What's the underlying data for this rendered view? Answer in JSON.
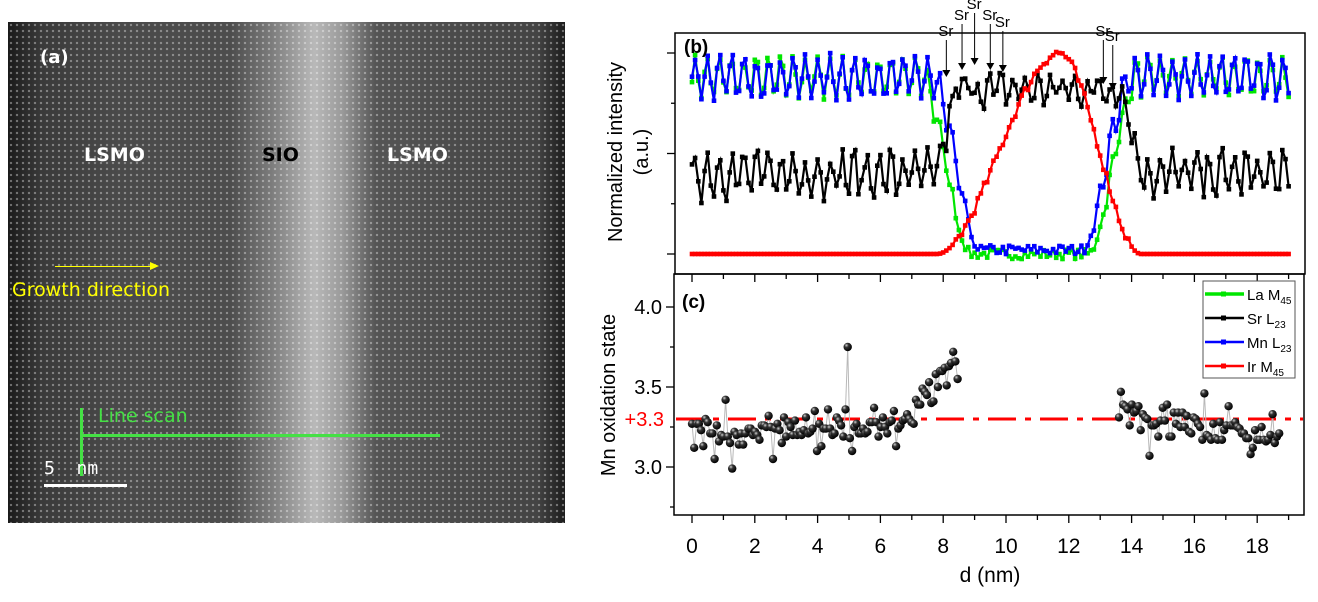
{
  "panel_a": {
    "label": "(a)",
    "regions": [
      "LSMO",
      "SIO",
      "LSMO"
    ],
    "growth_label": "Growth direction",
    "line_scan_label": "Line scan",
    "scale_bar_label": "5  nm",
    "colors": {
      "growth": "#ffff00",
      "line_scan": "#44e044",
      "sio_label": "#000000",
      "lsmo_label": "#ffffff"
    }
  },
  "chart_data": [
    {
      "id": "b",
      "type": "line",
      "panel_label": "(b)",
      "title": "",
      "xlabel": "",
      "ylabel": "Normalized intensity",
      "ylabel2": "(a.u.)",
      "xlim": [
        -0.57,
        19.46
      ],
      "ylim": [
        -0.2,
        1.2
      ],
      "yticks_major": [
        0,
        0.5,
        1.0
      ],
      "yticks_minor": [
        0.25,
        0.75
      ],
      "ytick_labels_shown": false,
      "xticks": [
        0,
        1,
        2,
        3,
        4,
        5,
        6,
        7,
        8,
        9,
        10,
        11,
        12,
        13,
        14,
        15,
        16,
        17,
        18,
        19
      ],
      "grid": false,
      "x_start": 0,
      "x_step": 0.1,
      "series": [
        {
          "name": "La M45",
          "color": "#00e600",
          "model": {
            "plateau": 0.88,
            "amp": 0.09,
            "period": 0.39,
            "dip_start": 7.3,
            "dip_end": 14.2,
            "floor": 0.0
          }
        },
        {
          "name": "Sr L23",
          "color": "#000000",
          "model": {
            "plateau": 0.4,
            "amp": 0.1,
            "period": 0.39,
            "mid": 0.82,
            "mid_start": 8.1,
            "mid_end": 14.0
          }
        },
        {
          "name": "Mn L23",
          "color": "#0000ff",
          "model": {
            "plateau": 0.88,
            "amp": 0.1,
            "period": 0.39,
            "dip_start": 7.6,
            "dip_end": 14.0,
            "floor": 0.02
          }
        },
        {
          "name": "Ir M45",
          "color": "#ff0000",
          "model": {
            "base": 0.0,
            "peak": 1.0,
            "rise_start": 7.8,
            "rise_end": 11.7,
            "fall_end": 14.3
          }
        }
      ],
      "annotations": [
        {
          "text": "Sr",
          "x": 8.1
        },
        {
          "text": "Sr",
          "x": 8.6
        },
        {
          "text": "Sr",
          "x": 9.0
        },
        {
          "text": "Sr",
          "x": 9.5
        },
        {
          "text": "Sr",
          "x": 9.9
        },
        {
          "text": "Sr",
          "x": 13.1
        },
        {
          "text": "Sr",
          "x": 13.4
        }
      ]
    },
    {
      "id": "c",
      "type": "scatter",
      "panel_label": "(c)",
      "title": "",
      "xlabel": "d (nm)",
      "ylabel": "Mn oxidation state",
      "xlim": [
        -0.57,
        19.46
      ],
      "ylim": [
        2.7,
        4.2
      ],
      "yticks": [
        3.0,
        3.5,
        4.0
      ],
      "ytick_labels": [
        "3.0",
        "3.5",
        "4.0"
      ],
      "yticks_minor": [
        2.75,
        3.25,
        3.75
      ],
      "xticks": [
        0,
        2,
        4,
        6,
        8,
        10,
        12,
        14,
        16,
        18
      ],
      "xtick_labels": [
        "0",
        "2",
        "4",
        "6",
        "8",
        "10",
        "12",
        "14",
        "16",
        "18"
      ],
      "xticks_minor": [
        1,
        3,
        5,
        7,
        9,
        11,
        13,
        15,
        17,
        19
      ],
      "grid": false,
      "reference_line": {
        "y": 3.3,
        "label": "+3.3",
        "color": "#ff0000",
        "style": "dash-dot"
      },
      "points": [
        [
          0.0,
          3.27
        ],
        [
          0.07,
          3.12
        ],
        [
          0.15,
          3.27
        ],
        [
          0.22,
          3.27
        ],
        [
          0.29,
          3.23
        ],
        [
          0.36,
          3.13
        ],
        [
          0.43,
          3.3
        ],
        [
          0.5,
          3.28
        ],
        [
          0.58,
          3.21
        ],
        [
          0.65,
          3.21
        ],
        [
          0.72,
          3.05
        ],
        [
          0.79,
          3.26
        ],
        [
          0.86,
          3.16
        ],
        [
          0.93,
          3.2
        ],
        [
          1.0,
          3.19
        ],
        [
          1.07,
          3.42
        ],
        [
          1.14,
          3.19
        ],
        [
          1.21,
          3.15
        ],
        [
          1.28,
          2.99
        ],
        [
          1.35,
          3.22
        ],
        [
          1.42,
          3.2
        ],
        [
          1.49,
          3.14
        ],
        [
          1.56,
          3.21
        ],
        [
          1.63,
          3.14
        ],
        [
          1.7,
          3.21
        ],
        [
          1.8,
          3.24
        ],
        [
          1.87,
          3.24
        ],
        [
          1.94,
          3.2
        ],
        [
          2.01,
          3.22
        ],
        [
          2.08,
          3.2
        ],
        [
          2.15,
          3.17
        ],
        [
          2.22,
          3.26
        ],
        [
          2.3,
          3.26
        ],
        [
          2.37,
          3.25
        ],
        [
          2.44,
          3.32
        ],
        [
          2.51,
          3.25
        ],
        [
          2.58,
          3.05
        ],
        [
          2.65,
          3.24
        ],
        [
          2.72,
          3.27
        ],
        [
          2.79,
          3.23
        ],
        [
          2.86,
          3.15
        ],
        [
          2.93,
          3.31
        ],
        [
          3.0,
          3.19
        ],
        [
          3.07,
          3.28
        ],
        [
          3.14,
          3.25
        ],
        [
          3.21,
          3.2
        ],
        [
          3.28,
          3.29
        ],
        [
          3.35,
          3.2
        ],
        [
          3.42,
          3.22
        ],
        [
          3.49,
          3.2
        ],
        [
          3.56,
          3.23
        ],
        [
          3.63,
          3.31
        ],
        [
          3.7,
          3.21
        ],
        [
          3.77,
          3.22
        ],
        [
          3.84,
          3.24
        ],
        [
          3.91,
          3.35
        ],
        [
          3.98,
          3.1
        ],
        [
          4.05,
          3.27
        ],
        [
          4.12,
          3.13
        ],
        [
          4.19,
          3.24
        ],
        [
          4.26,
          3.24
        ],
        [
          4.33,
          3.36
        ],
        [
          4.4,
          3.24
        ],
        [
          4.47,
          3.2
        ],
        [
          4.54,
          3.21
        ],
        [
          4.61,
          3.31
        ],
        [
          4.68,
          3.29
        ],
        [
          4.75,
          3.26
        ],
        [
          4.82,
          3.19
        ],
        [
          4.89,
          3.36
        ],
        [
          4.96,
          3.75
        ],
        [
          5.03,
          3.18
        ],
        [
          5.1,
          3.1
        ],
        [
          5.17,
          3.25
        ],
        [
          5.24,
          3.27
        ],
        [
          5.31,
          3.21
        ],
        [
          5.38,
          3.21
        ],
        [
          5.45,
          3.24
        ],
        [
          5.52,
          3.21
        ],
        [
          5.59,
          3.22
        ],
        [
          5.66,
          3.28
        ],
        [
          5.73,
          3.28
        ],
        [
          5.8,
          3.37
        ],
        [
          5.87,
          3.28
        ],
        [
          5.94,
          3.19
        ],
        [
          6.01,
          3.25
        ],
        [
          6.08,
          3.31
        ],
        [
          6.15,
          3.25
        ],
        [
          6.22,
          3.21
        ],
        [
          6.29,
          3.28
        ],
        [
          6.36,
          3.29
        ],
        [
          6.43,
          3.35
        ],
        [
          6.5,
          3.13
        ],
        [
          6.57,
          3.24
        ],
        [
          6.64,
          3.26
        ],
        [
          6.71,
          3.29
        ],
        [
          6.78,
          3.3
        ],
        [
          6.85,
          3.33
        ],
        [
          6.92,
          3.3
        ],
        [
          6.99,
          3.28
        ],
        [
          7.06,
          3.27
        ],
        [
          7.13,
          3.42
        ],
        [
          7.2,
          3.39
        ],
        [
          7.27,
          3.39
        ],
        [
          7.34,
          3.49
        ],
        [
          7.41,
          3.47
        ],
        [
          7.48,
          3.45
        ],
        [
          7.55,
          3.53
        ],
        [
          7.62,
          3.4
        ],
        [
          7.69,
          3.41
        ],
        [
          7.76,
          3.58
        ],
        [
          7.83,
          3.5
        ],
        [
          7.9,
          3.6
        ],
        [
          7.97,
          3.6
        ],
        [
          8.04,
          3.62
        ],
        [
          8.11,
          3.51
        ],
        [
          8.18,
          3.63
        ],
        [
          8.25,
          3.65
        ],
        [
          8.32,
          3.72
        ],
        [
          8.39,
          3.66
        ],
        [
          8.46,
          3.55
        ],
        [
          13.6,
          3.31
        ],
        [
          13.66,
          3.47
        ],
        [
          13.73,
          3.39
        ],
        [
          13.8,
          3.38
        ],
        [
          13.87,
          3.36
        ],
        [
          13.94,
          3.26
        ],
        [
          14.01,
          3.39
        ],
        [
          14.08,
          3.34
        ],
        [
          14.15,
          3.35
        ],
        [
          14.22,
          3.38
        ],
        [
          14.29,
          3.23
        ],
        [
          14.36,
          3.33
        ],
        [
          14.43,
          3.31
        ],
        [
          14.5,
          3.3
        ],
        [
          14.57,
          3.07
        ],
        [
          14.64,
          3.26
        ],
        [
          14.71,
          3.26
        ],
        [
          14.78,
          3.27
        ],
        [
          14.85,
          3.19
        ],
        [
          14.92,
          3.29
        ],
        [
          14.99,
          3.37
        ],
        [
          15.06,
          3.29
        ],
        [
          15.13,
          3.39
        ],
        [
          15.2,
          3.19
        ],
        [
          15.27,
          3.19
        ],
        [
          15.34,
          3.34
        ],
        [
          15.41,
          3.27
        ],
        [
          15.48,
          3.34
        ],
        [
          15.55,
          3.25
        ],
        [
          15.62,
          3.34
        ],
        [
          15.69,
          3.25
        ],
        [
          15.76,
          3.32
        ],
        [
          15.83,
          3.22
        ],
        [
          15.9,
          3.21
        ],
        [
          15.97,
          3.31
        ],
        [
          16.04,
          3.3
        ],
        [
          16.11,
          3.27
        ],
        [
          16.18,
          3.25
        ],
        [
          16.25,
          3.17
        ],
        [
          16.32,
          3.46
        ],
        [
          16.39,
          3.2
        ],
        [
          16.46,
          3.19
        ],
        [
          16.53,
          3.17
        ],
        [
          16.6,
          3.27
        ],
        [
          16.67,
          3.18
        ],
        [
          16.74,
          3.17
        ],
        [
          16.81,
          3.28
        ],
        [
          16.88,
          3.17
        ],
        [
          16.95,
          3.23
        ],
        [
          17.02,
          3.26
        ],
        [
          17.09,
          3.38
        ],
        [
          17.16,
          3.26
        ],
        [
          17.23,
          3.26
        ],
        [
          17.3,
          3.28
        ],
        [
          17.37,
          3.25
        ],
        [
          17.44,
          3.24
        ],
        [
          17.51,
          3.21
        ],
        [
          17.58,
          3.21
        ],
        [
          17.65,
          3.18
        ],
        [
          17.72,
          3.18
        ],
        [
          17.79,
          3.08
        ],
        [
          17.86,
          3.12
        ],
        [
          17.93,
          3.23
        ],
        [
          18.0,
          3.17
        ],
        [
          18.07,
          3.17
        ],
        [
          18.14,
          3.25
        ],
        [
          18.21,
          3.17
        ],
        [
          18.28,
          3.16
        ],
        [
          18.35,
          3.17
        ],
        [
          18.42,
          3.2
        ],
        [
          18.49,
          3.33
        ],
        [
          18.56,
          3.15
        ],
        [
          18.63,
          3.19
        ],
        [
          18.7,
          3.21
        ]
      ]
    }
  ],
  "legend": {
    "placement": "top-right of panel (c)",
    "entries": [
      {
        "name": "La M",
        "sub": "45",
        "color": "#00e600"
      },
      {
        "name": "Sr L",
        "sub": "23",
        "color": "#000000"
      },
      {
        "name": "Mn L",
        "sub": "23",
        "color": "#0000ff"
      },
      {
        "name": "Ir M",
        "sub": "45",
        "color": "#ff0000"
      }
    ]
  }
}
